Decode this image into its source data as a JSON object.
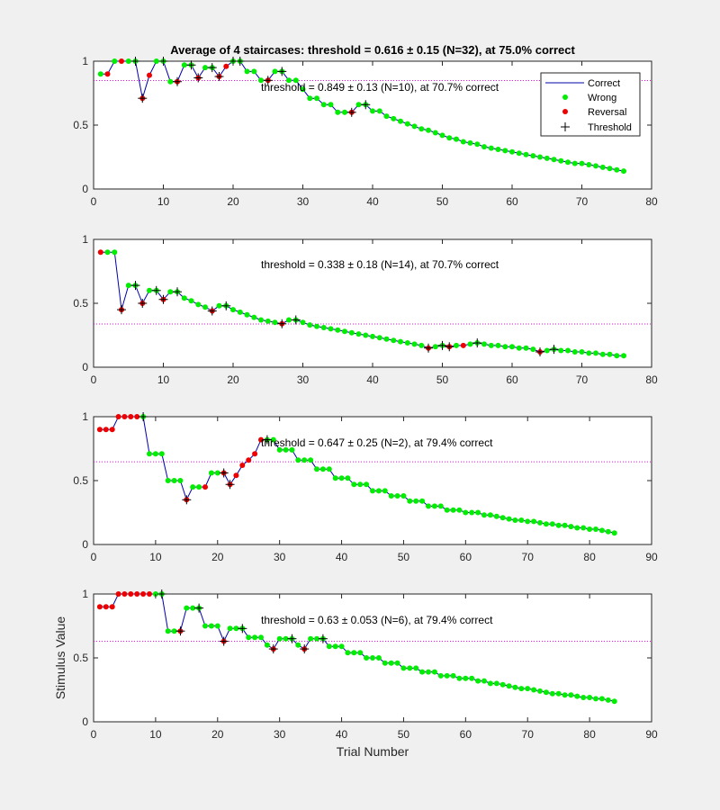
{
  "figure": {
    "background": "#f0f0f0",
    "colors": {
      "correct_line": "#0000aa",
      "wrong_marker": "#00ee00",
      "reversal_marker": "#ee0000",
      "threshold_marker": "#000000",
      "threshold_line": "#ff00ff",
      "axes_bg": "#ffffff",
      "axes_edge": "#262626"
    }
  },
  "chart_data": [
    {
      "type": "line",
      "title": "Average of 4 staircases: threshold = 0.616 ± 0.15 (N=32), at 75.0% correct",
      "annotation": "threshold = 0.849 ± 0.13 (N=10), at 70.7% correct",
      "xlabel": "",
      "ylabel": "",
      "xlim": [
        0,
        80
      ],
      "ylim": [
        0,
        1
      ],
      "xticks": [
        "0",
        "10",
        "20",
        "30",
        "40",
        "50",
        "60",
        "70",
        "80"
      ],
      "yticks": [
        "0",
        "0.5",
        "1"
      ],
      "threshold": 0.849,
      "legend": {
        "position": "top-right",
        "entries": [
          "Correct",
          "Wrong",
          "Reversal",
          "Threshold"
        ]
      },
      "series": [
        {
          "name": "Correct",
          "x": [
            1,
            2,
            3,
            4,
            5,
            6,
            7,
            8,
            9,
            10,
            11,
            12,
            13,
            14,
            15,
            16,
            17,
            18,
            19,
            20,
            21,
            22,
            23,
            24,
            25,
            26,
            27,
            28,
            29,
            30,
            31,
            32,
            33,
            34,
            35,
            36,
            37,
            38,
            39,
            40,
            41,
            42,
            43,
            44,
            45,
            46,
            47,
            48,
            49,
            50,
            51,
            52,
            53,
            54,
            55,
            56,
            57,
            58,
            59,
            60,
            61,
            62,
            63,
            64,
            65,
            66,
            67,
            68,
            69,
            70,
            71,
            72,
            73,
            74,
            75,
            76
          ],
          "y": [
            0.9,
            0.9,
            1.0,
            1.0,
            1.0,
            1.0,
            0.71,
            0.89,
            1.0,
            1.0,
            0.84,
            0.84,
            0.97,
            0.97,
            0.87,
            0.95,
            0.95,
            0.88,
            0.96,
            1.0,
            1.0,
            0.92,
            0.92,
            0.85,
            0.85,
            0.92,
            0.92,
            0.85,
            0.85,
            0.78,
            0.71,
            0.71,
            0.66,
            0.66,
            0.6,
            0.6,
            0.6,
            0.66,
            0.66,
            0.61,
            0.61,
            0.57,
            0.55,
            0.53,
            0.51,
            0.49,
            0.47,
            0.46,
            0.44,
            0.42,
            0.4,
            0.39,
            0.37,
            0.36,
            0.35,
            0.33,
            0.32,
            0.31,
            0.3,
            0.29,
            0.28,
            0.27,
            0.26,
            0.25,
            0.24,
            0.23,
            0.22,
            0.21,
            0.2,
            0.2,
            0.19,
            0.18,
            0.17,
            0.16,
            0.15,
            0.14
          ]
        },
        {
          "name": "Reversal",
          "x": [
            2,
            4,
            7,
            8,
            12,
            15,
            18,
            19,
            25,
            37
          ],
          "y": [
            0.9,
            1.0,
            0.71,
            0.89,
            0.84,
            0.87,
            0.88,
            0.96,
            0.85,
            0.6
          ]
        },
        {
          "name": "Threshold",
          "x": [
            6,
            7,
            10,
            12,
            14,
            15,
            17,
            18,
            20,
            21,
            25,
            27,
            37,
            39
          ],
          "y": [
            1.0,
            0.71,
            1.0,
            0.84,
            0.97,
            0.87,
            0.95,
            0.88,
            1.0,
            1.0,
            0.85,
            0.92,
            0.6,
            0.66
          ]
        }
      ]
    },
    {
      "type": "line",
      "title": "",
      "annotation": "threshold = 0.338 ± 0.18 (N=14), at 70.7% correct",
      "xlabel": "",
      "ylabel": "",
      "xlim": [
        0,
        80
      ],
      "ylim": [
        0,
        1
      ],
      "xticks": [
        "0",
        "10",
        "20",
        "30",
        "40",
        "50",
        "60",
        "70",
        "80"
      ],
      "yticks": [
        "0",
        "0.5",
        "1"
      ],
      "threshold": 0.338,
      "series": [
        {
          "name": "Correct",
          "x": [
            1,
            2,
            3,
            4,
            5,
            6,
            7,
            8,
            9,
            10,
            11,
            12,
            13,
            14,
            15,
            16,
            17,
            18,
            19,
            20,
            21,
            22,
            23,
            24,
            25,
            26,
            27,
            28,
            29,
            30,
            31,
            32,
            33,
            34,
            35,
            36,
            37,
            38,
            39,
            40,
            41,
            42,
            43,
            44,
            45,
            46,
            47,
            48,
            49,
            50,
            51,
            52,
            53,
            54,
            55,
            56,
            57,
            58,
            59,
            60,
            61,
            62,
            63,
            64,
            65,
            66,
            67,
            68,
            69,
            70,
            71,
            72,
            73,
            74,
            75,
            76
          ],
          "y": [
            0.9,
            0.9,
            0.9,
            0.45,
            0.64,
            0.64,
            0.5,
            0.6,
            0.6,
            0.53,
            0.59,
            0.59,
            0.54,
            0.52,
            0.49,
            0.47,
            0.44,
            0.48,
            0.48,
            0.45,
            0.43,
            0.41,
            0.39,
            0.37,
            0.36,
            0.35,
            0.34,
            0.37,
            0.37,
            0.35,
            0.33,
            0.32,
            0.31,
            0.3,
            0.29,
            0.28,
            0.27,
            0.26,
            0.25,
            0.24,
            0.23,
            0.22,
            0.21,
            0.2,
            0.19,
            0.18,
            0.17,
            0.15,
            0.16,
            0.17,
            0.16,
            0.17,
            0.17,
            0.18,
            0.19,
            0.18,
            0.17,
            0.17,
            0.16,
            0.16,
            0.15,
            0.15,
            0.14,
            0.12,
            0.13,
            0.14,
            0.13,
            0.13,
            0.12,
            0.12,
            0.11,
            0.11,
            0.1,
            0.1,
            0.09,
            0.09
          ]
        },
        {
          "name": "Reversal",
          "x": [
            1,
            4,
            7,
            10,
            17,
            27,
            48,
            51,
            53,
            64
          ],
          "y": [
            0.9,
            0.45,
            0.5,
            0.53,
            0.44,
            0.34,
            0.15,
            0.16,
            0.17,
            0.12
          ]
        },
        {
          "name": "Threshold",
          "x": [
            4,
            6,
            7,
            9,
            10,
            12,
            17,
            19,
            27,
            29,
            48,
            50,
            51,
            55,
            64,
            66
          ],
          "y": [
            0.45,
            0.64,
            0.5,
            0.6,
            0.53,
            0.59,
            0.44,
            0.48,
            0.34,
            0.37,
            0.15,
            0.17,
            0.16,
            0.19,
            0.12,
            0.14
          ]
        }
      ]
    },
    {
      "type": "line",
      "title": "",
      "annotation": "threshold = 0.647 ± 0.25 (N=2), at 79.4% correct",
      "xlabel": "",
      "ylabel": "",
      "xlim": [
        0,
        90
      ],
      "ylim": [
        0,
        1
      ],
      "xticks": [
        "0",
        "10",
        "20",
        "30",
        "40",
        "50",
        "60",
        "70",
        "80",
        "90"
      ],
      "yticks": [
        "0",
        "0.5",
        "1"
      ],
      "threshold": 0.647,
      "series": [
        {
          "name": "Correct",
          "x": [
            1,
            2,
            3,
            4,
            5,
            6,
            7,
            8,
            9,
            10,
            11,
            12,
            13,
            14,
            15,
            16,
            17,
            18,
            19,
            20,
            21,
            22,
            23,
            24,
            25,
            26,
            27,
            28,
            29,
            30,
            31,
            32,
            33,
            34,
            35,
            36,
            37,
            38,
            39,
            40,
            41,
            42,
            43,
            44,
            45,
            46,
            47,
            48,
            49,
            50,
            51,
            52,
            53,
            54,
            55,
            56,
            57,
            58,
            59,
            60,
            61,
            62,
            63,
            64,
            65,
            66,
            67,
            68,
            69,
            70,
            71,
            72,
            73,
            74,
            75,
            76,
            77,
            78,
            79,
            80,
            81,
            82,
            83,
            84
          ],
          "y": [
            0.9,
            0.9,
            0.9,
            1.0,
            1.0,
            1.0,
            1.0,
            1.0,
            0.71,
            0.71,
            0.71,
            0.5,
            0.5,
            0.5,
            0.35,
            0.45,
            0.45,
            0.45,
            0.56,
            0.56,
            0.56,
            0.47,
            0.54,
            0.62,
            0.66,
            0.71,
            0.82,
            0.82,
            0.82,
            0.74,
            0.74,
            0.74,
            0.66,
            0.66,
            0.66,
            0.59,
            0.59,
            0.59,
            0.52,
            0.52,
            0.52,
            0.47,
            0.47,
            0.47,
            0.42,
            0.42,
            0.42,
            0.38,
            0.38,
            0.38,
            0.34,
            0.34,
            0.34,
            0.3,
            0.3,
            0.3,
            0.27,
            0.27,
            0.27,
            0.25,
            0.25,
            0.25,
            0.23,
            0.23,
            0.22,
            0.21,
            0.2,
            0.19,
            0.19,
            0.18,
            0.18,
            0.17,
            0.16,
            0.16,
            0.15,
            0.15,
            0.14,
            0.13,
            0.13,
            0.12,
            0.12,
            0.11,
            0.1,
            0.09
          ]
        },
        {
          "name": "Reversal",
          "x": [
            1,
            2,
            3,
            4,
            5,
            6,
            7,
            15,
            18,
            21,
            22,
            23,
            24,
            25,
            26,
            27
          ],
          "y": [
            0.9,
            0.9,
            0.9,
            1.0,
            1.0,
            1.0,
            1.0,
            0.35,
            0.45,
            0.56,
            0.47,
            0.54,
            0.62,
            0.66,
            0.71,
            0.82
          ]
        },
        {
          "name": "Threshold",
          "x": [
            8,
            15,
            21,
            22,
            28
          ],
          "y": [
            1.0,
            0.35,
            0.56,
            0.47,
            0.82
          ]
        }
      ]
    },
    {
      "type": "line",
      "title": "",
      "annotation": "threshold = 0.63 ± 0.053 (N=6), at 79.4% correct",
      "xlabel": "Trial Number",
      "ylabel": "Stimulus Value",
      "xlim": [
        0,
        90
      ],
      "ylim": [
        0,
        1
      ],
      "xticks": [
        "0",
        "10",
        "20",
        "30",
        "40",
        "50",
        "60",
        "70",
        "80",
        "90"
      ],
      "yticks": [
        "0",
        "0.5",
        "1"
      ],
      "threshold": 0.63,
      "series": [
        {
          "name": "Correct",
          "x": [
            1,
            2,
            3,
            4,
            5,
            6,
            7,
            8,
            9,
            10,
            11,
            12,
            13,
            14,
            15,
            16,
            17,
            18,
            19,
            20,
            21,
            22,
            23,
            24,
            25,
            26,
            27,
            28,
            29,
            30,
            31,
            32,
            33,
            34,
            35,
            36,
            37,
            38,
            39,
            40,
            41,
            42,
            43,
            44,
            45,
            46,
            47,
            48,
            49,
            50,
            51,
            52,
            53,
            54,
            55,
            56,
            57,
            58,
            59,
            60,
            61,
            62,
            63,
            64,
            65,
            66,
            67,
            68,
            69,
            70,
            71,
            72,
            73,
            74,
            75,
            76,
            77,
            78,
            79,
            80,
            81,
            82,
            83,
            84
          ],
          "y": [
            0.9,
            0.9,
            0.9,
            1.0,
            1.0,
            1.0,
            1.0,
            1.0,
            1.0,
            1.0,
            1.0,
            0.71,
            0.71,
            0.71,
            0.89,
            0.89,
            0.89,
            0.75,
            0.75,
            0.75,
            0.63,
            0.73,
            0.73,
            0.73,
            0.66,
            0.66,
            0.66,
            0.6,
            0.57,
            0.65,
            0.65,
            0.65,
            0.6,
            0.57,
            0.65,
            0.65,
            0.65,
            0.59,
            0.59,
            0.59,
            0.54,
            0.54,
            0.54,
            0.5,
            0.5,
            0.5,
            0.46,
            0.46,
            0.46,
            0.42,
            0.42,
            0.42,
            0.39,
            0.39,
            0.39,
            0.36,
            0.36,
            0.36,
            0.34,
            0.34,
            0.34,
            0.32,
            0.32,
            0.3,
            0.3,
            0.29,
            0.28,
            0.27,
            0.26,
            0.26,
            0.25,
            0.24,
            0.23,
            0.22,
            0.22,
            0.21,
            0.21,
            0.2,
            0.19,
            0.19,
            0.18,
            0.18,
            0.17,
            0.16
          ]
        },
        {
          "name": "Reversal",
          "x": [
            1,
            2,
            3,
            4,
            5,
            6,
            7,
            8,
            9,
            14,
            21,
            29,
            34
          ],
          "y": [
            0.9,
            0.9,
            0.9,
            1.0,
            1.0,
            1.0,
            1.0,
            1.0,
            1.0,
            0.71,
            0.63,
            0.57,
            0.57
          ]
        },
        {
          "name": "Threshold",
          "x": [
            11,
            14,
            17,
            21,
            24,
            29,
            32,
            34,
            37
          ],
          "y": [
            1.0,
            0.71,
            0.89,
            0.63,
            0.73,
            0.57,
            0.65,
            0.57,
            0.65
          ]
        }
      ]
    }
  ]
}
